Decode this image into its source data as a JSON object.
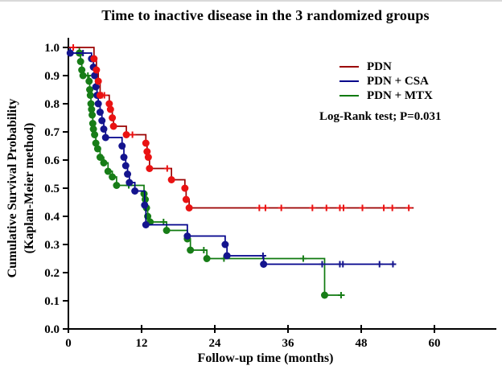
{
  "chart_data": {
    "type": "line",
    "subtype": "kaplan_meier_step",
    "title": "Time to inactive disease in the 3 randomized groups",
    "xlabel": "Follow-up time (months)",
    "ylabel_line1": "Cumulative Survival Probability",
    "ylabel_line2": "(Kaplan-Meier method)",
    "annotation": "Log-Rank test; P=0.031",
    "legend_position": "upper-right-inside",
    "grid": false,
    "xlim": [
      0,
      66
    ],
    "ylim": [
      0.0,
      1.0
    ],
    "xticks": [
      "0",
      "12",
      "24",
      "36",
      "48",
      "60"
    ],
    "xtick_values": [
      0,
      12,
      24,
      36,
      48,
      60
    ],
    "yticks": [
      "0.0",
      "0.1",
      "0.2",
      "0.3",
      "0.4",
      "0.5",
      "0.6",
      "0.7",
      "0.8",
      "0.9",
      "1.0"
    ],
    "ytick_values": [
      0.0,
      0.1,
      0.2,
      0.3,
      0.4,
      0.5,
      0.6,
      0.7,
      0.8,
      0.9,
      1.0
    ],
    "marker_legend": {
      "event": "filled circle",
      "censored": "plus"
    },
    "series": [
      {
        "name": "PDN",
        "line_color": "#9b0000",
        "marker_color": "#ea1212",
        "end_time": 56.6,
        "steps": [
          [
            0,
            1.0
          ],
          [
            4.2,
            0.96
          ],
          [
            4.6,
            0.92
          ],
          [
            4.9,
            0.88
          ],
          [
            5.2,
            0.83
          ],
          [
            6.7,
            0.8
          ],
          [
            6.9,
            0.78
          ],
          [
            7.2,
            0.75
          ],
          [
            7.4,
            0.72
          ],
          [
            9.5,
            0.69
          ],
          [
            12.7,
            0.66
          ],
          [
            12.9,
            0.63
          ],
          [
            13.1,
            0.61
          ],
          [
            13.3,
            0.57
          ],
          [
            16.9,
            0.53
          ],
          [
            19.1,
            0.5
          ],
          [
            19.3,
            0.46
          ],
          [
            19.8,
            0.43
          ]
        ],
        "censored": [
          [
            0.8,
            1.0
          ],
          [
            5.5,
            0.83
          ],
          [
            5.9,
            0.83
          ],
          [
            10.5,
            0.69
          ],
          [
            16.2,
            0.57
          ],
          [
            31.3,
            0.43
          ],
          [
            32.3,
            0.43
          ],
          [
            34.9,
            0.43
          ],
          [
            40.0,
            0.43
          ],
          [
            42.3,
            0.43
          ],
          [
            44.5,
            0.43
          ],
          [
            45.1,
            0.43
          ],
          [
            48.2,
            0.43
          ],
          [
            51.7,
            0.43
          ],
          [
            53.1,
            0.43
          ],
          [
            55.8,
            0.43
          ]
        ]
      },
      {
        "name": "PDN + CSA",
        "line_color": "#00008b",
        "marker_color": "#14148e",
        "end_time": 53.7,
        "steps": [
          [
            0,
            1.0
          ],
          [
            0.3,
            0.98
          ],
          [
            3.8,
            0.96
          ],
          [
            4.1,
            0.93
          ],
          [
            4.3,
            0.9
          ],
          [
            4.5,
            0.86
          ],
          [
            4.7,
            0.83
          ],
          [
            4.9,
            0.8
          ],
          [
            5.2,
            0.77
          ],
          [
            5.5,
            0.74
          ],
          [
            5.8,
            0.71
          ],
          [
            6.1,
            0.68
          ],
          [
            8.8,
            0.65
          ],
          [
            9.1,
            0.61
          ],
          [
            9.4,
            0.58
          ],
          [
            9.7,
            0.55
          ],
          [
            10.0,
            0.52
          ],
          [
            10.9,
            0.49
          ],
          [
            12.5,
            0.44
          ],
          [
            12.7,
            0.37
          ],
          [
            19.5,
            0.33
          ],
          [
            25.7,
            0.3
          ],
          [
            26.0,
            0.26
          ],
          [
            32.0,
            0.23
          ]
        ],
        "censored": [
          [
            2.4,
            0.98
          ],
          [
            31.9,
            0.26
          ],
          [
            41.6,
            0.23
          ],
          [
            44.5,
            0.23
          ],
          [
            45.0,
            0.23
          ],
          [
            51.0,
            0.23
          ],
          [
            53.2,
            0.23
          ]
        ]
      },
      {
        "name": "PDN + MTX",
        "line_color": "#0f7a0f",
        "marker_color": "#177d17",
        "end_time": 45.3,
        "steps": [
          [
            0,
            1.0
          ],
          [
            1.8,
            0.98
          ],
          [
            2.0,
            0.95
          ],
          [
            2.2,
            0.92
          ],
          [
            2.4,
            0.9
          ],
          [
            3.4,
            0.88
          ],
          [
            3.5,
            0.85
          ],
          [
            3.6,
            0.83
          ],
          [
            3.7,
            0.8
          ],
          [
            3.8,
            0.78
          ],
          [
            3.9,
            0.76
          ],
          [
            4.0,
            0.73
          ],
          [
            4.1,
            0.71
          ],
          [
            4.3,
            0.69
          ],
          [
            4.5,
            0.66
          ],
          [
            4.8,
            0.64
          ],
          [
            5.2,
            0.61
          ],
          [
            5.8,
            0.59
          ],
          [
            6.5,
            0.56
          ],
          [
            7.2,
            0.54
          ],
          [
            7.9,
            0.51
          ],
          [
            12.4,
            0.48
          ],
          [
            12.6,
            0.46
          ],
          [
            12.8,
            0.43
          ],
          [
            13.0,
            0.4
          ],
          [
            13.4,
            0.38
          ],
          [
            16.1,
            0.35
          ],
          [
            19.5,
            0.32
          ],
          [
            20.0,
            0.28
          ],
          [
            22.7,
            0.25
          ],
          [
            42.0,
            0.12
          ]
        ],
        "censored": [
          [
            3.2,
            0.9
          ],
          [
            9.9,
            0.51
          ],
          [
            15.6,
            0.38
          ],
          [
            22.2,
            0.28
          ],
          [
            25.5,
            0.25
          ],
          [
            38.5,
            0.25
          ],
          [
            44.7,
            0.12
          ]
        ]
      }
    ]
  }
}
